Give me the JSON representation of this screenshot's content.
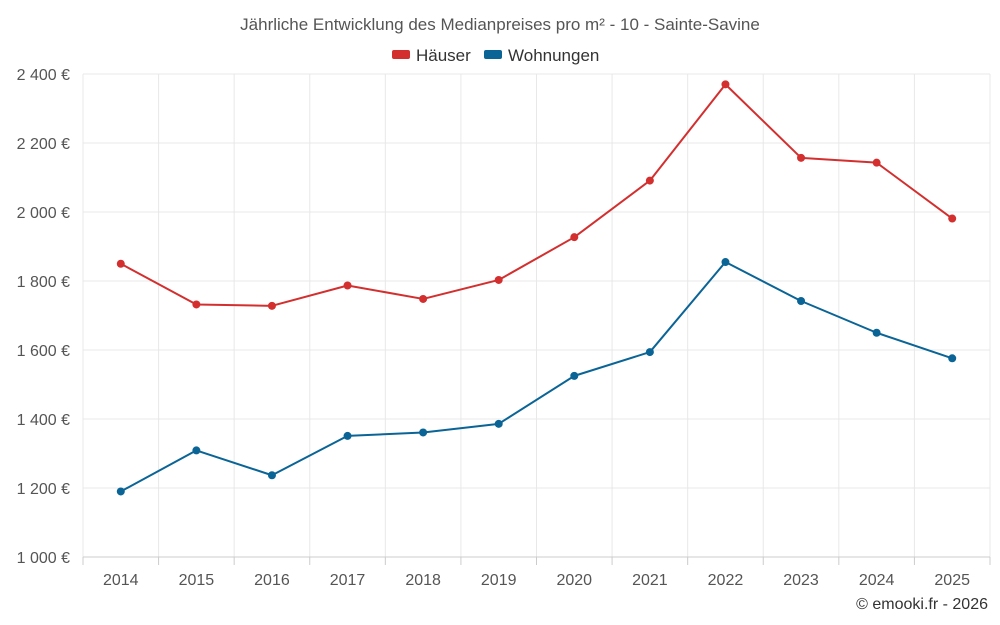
{
  "chart_data": {
    "type": "line",
    "title": "Jährliche Entwicklung des Medianpreises pro m² - 10 - Sainte-Savine",
    "categories": [
      "2014",
      "2015",
      "2016",
      "2017",
      "2018",
      "2019",
      "2020",
      "2021",
      "2022",
      "2023",
      "2024",
      "2025"
    ],
    "series": [
      {
        "name": "Häuser",
        "color": "#d32f2f",
        "values": [
          1850,
          1732,
          1728,
          1787,
          1748,
          1803,
          1927,
          2091,
          2370,
          2157,
          2143,
          1981
        ]
      },
      {
        "name": "Wohnungen",
        "color": "#0a6496",
        "values": [
          1190,
          1309,
          1237,
          1351,
          1361,
          1386,
          1525,
          1594,
          1855,
          1742,
          1650,
          1576
        ]
      }
    ],
    "ylim": [
      1000,
      2400
    ],
    "yticks": [
      1000,
      1200,
      1400,
      1600,
      1800,
      2000,
      2200,
      2400
    ],
    "ytick_labels": [
      "1 000 €",
      "1 200 €",
      "1 400 €",
      "1 600 €",
      "1 800 €",
      "2 000 €",
      "2 200 €",
      "2 400 €"
    ],
    "xlabel": "",
    "ylabel": "",
    "legend_position": "top-center",
    "grid": true
  },
  "credit": "© emooki.fr - 2026"
}
